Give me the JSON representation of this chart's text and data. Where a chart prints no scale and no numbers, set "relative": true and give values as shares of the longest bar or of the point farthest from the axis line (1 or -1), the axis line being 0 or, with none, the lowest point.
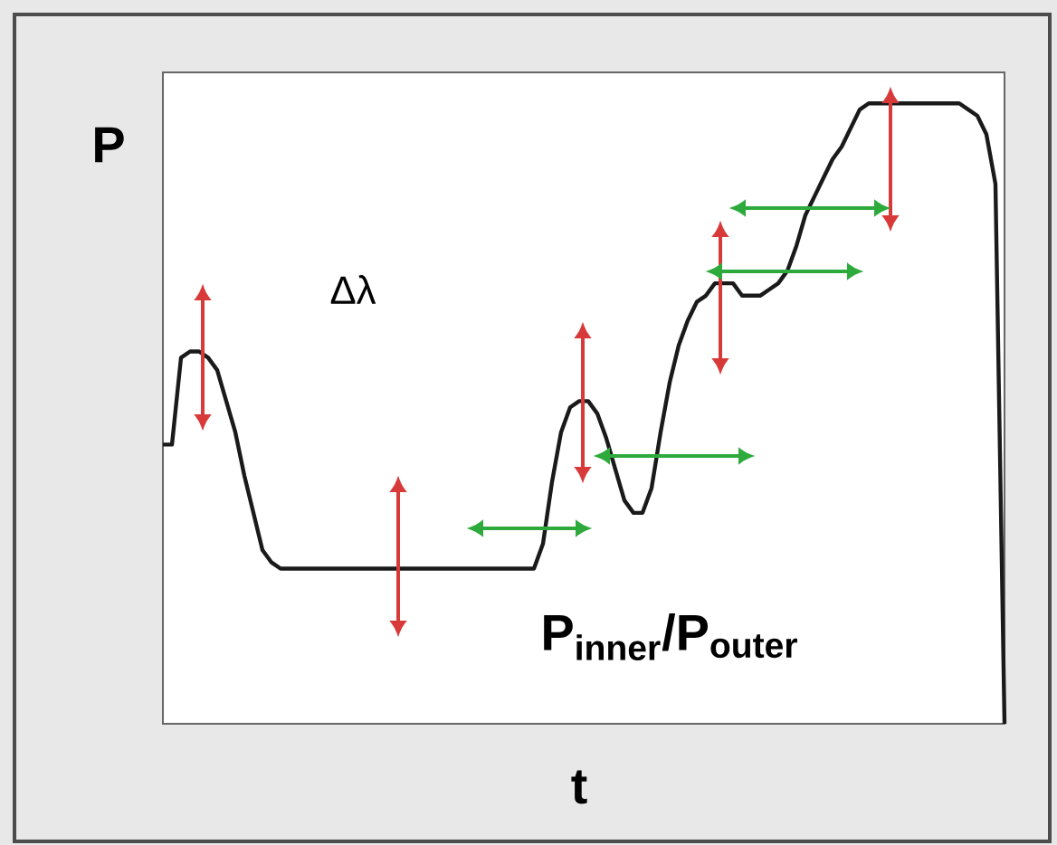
{
  "chart_data": {
    "type": "line",
    "relative": true,
    "xlabel": "t",
    "ylabel": "P",
    "annotations": [
      "Δλ",
      "**P$_{inner}$/P$_{outer}$**"
    ],
    "categories": [
      null,
      null,
      null,
      null,
      null,
      null,
      null,
      null,
      null,
      null,
      null,
      null,
      null,
      null,
      null,
      null,
      null,
      null,
      null,
      null,
      null,
      null,
      null,
      null,
      null,
      null,
      null,
      null,
      null,
      null,
      null,
      null,
      null,
      null,
      null,
      null,
      null,
      null,
      null,
      null,
      null,
      null,
      null,
      null,
      null,
      null,
      null,
      null,
      null,
      null,
      null,
      null,
      null,
      null,
      null,
      null,
      null,
      null,
      null,
      null,
      null,
      null,
      null,
      null,
      null,
      null,
      null,
      null,
      null,
      null,
      null,
      null,
      null,
      null,
      null,
      null,
      null,
      null,
      null,
      null,
      null,
      null,
      null,
      null,
      null,
      null,
      null,
      null,
      null,
      null,
      null,
      null,
      null,
      null
    ],
    "series": [
      {
        "color": "#1a1a1a",
        "values": [
          0.45,
          0.45,
          0.59,
          0.6,
          0.6,
          0.59,
          0.57,
          0.52,
          0.47,
          0.4,
          0.34,
          0.28,
          0.26,
          0.25,
          0.25,
          0.25,
          0.25,
          0.25,
          0.25,
          0.25,
          0.25,
          0.25,
          0.25,
          0.25,
          0.25,
          0.25,
          0.25,
          0.25,
          0.25,
          0.25,
          0.25,
          0.25,
          0.25,
          0.25,
          0.25,
          0.25,
          0.25,
          0.25,
          0.25,
          0.25,
          0.25,
          0.25,
          0.29,
          0.39,
          0.47,
          0.51,
          0.52,
          0.52,
          0.5,
          0.46,
          0.41,
          0.36,
          0.34,
          0.34,
          0.38,
          0.47,
          0.55,
          0.61,
          0.65,
          0.68,
          0.69,
          0.71,
          0.71,
          0.71,
          0.69,
          0.69,
          0.69,
          0.7,
          0.71,
          0.73,
          0.77,
          0.82,
          0.85,
          0.88,
          0.91,
          0.93,
          0.96,
          0.99,
          1.0,
          1.0,
          1.0,
          1.0,
          1.0,
          1.0,
          1.0,
          1.0,
          1.0,
          1.0,
          1.0,
          0.99,
          0.98,
          0.95,
          0.87,
          0
        ]
      }
    ]
  }
}
